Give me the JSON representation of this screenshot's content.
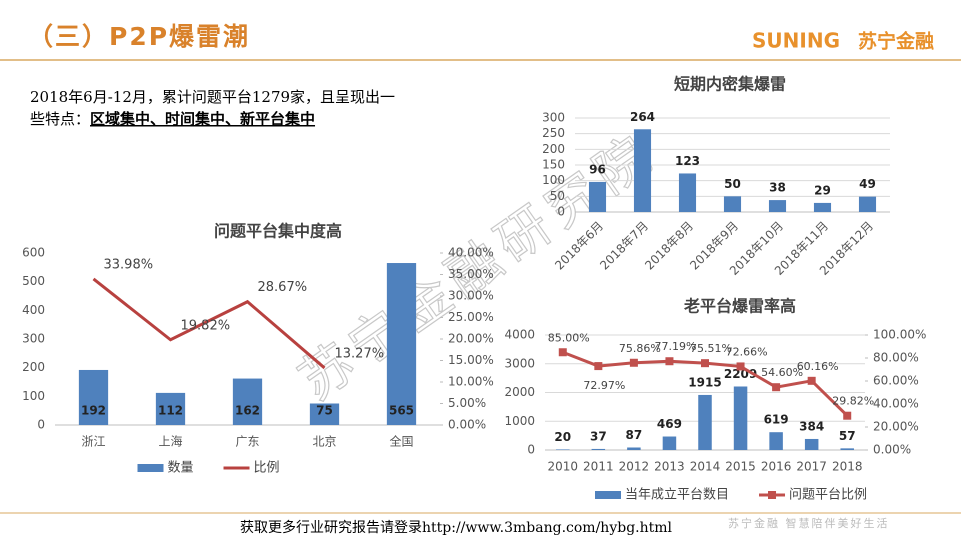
{
  "header": {
    "title": "（三）P2P爆雷潮",
    "logo_latin": "SUNING",
    "logo_cn": "苏宁金融"
  },
  "intro": {
    "line1": "2018年6月-12月，累计问题平台1279家，且呈现出一",
    "line2_prefix": "些特点：",
    "line2_emphasis": "区域集中、时间集中、新平台集中"
  },
  "watermark": "苏宁金融研究院",
  "footer": {
    "text": "获取更多行业研究报告请登录http://www.3mbang.com/hybg.html",
    "slogan": "苏宁金融 智慧陪伴美好生活"
  },
  "chart_data": [
    {
      "type": "combo",
      "title": "问题平台集中度高",
      "grid": false,
      "legend": "bottom",
      "categories": [
        "浙江",
        "上海",
        "广东",
        "北京",
        "全国"
      ],
      "series": [
        {
          "name": "数量",
          "type": "bar",
          "color": "#4f81bd",
          "values": [
            192,
            112,
            162,
            75,
            565
          ]
        },
        {
          "name": "比例",
          "type": "line",
          "axis": "y2",
          "color": "#b8413f",
          "values": [
            33.98,
            19.82,
            28.67,
            13.27,
            null
          ],
          "value_labels": [
            "33.98%",
            "19.82%",
            "28.67%",
            "13.27%",
            null
          ]
        }
      ],
      "ylim": [
        0,
        600
      ],
      "yticks": [
        0,
        100,
        200,
        300,
        400,
        500,
        600
      ],
      "y2lim": [
        0,
        40
      ],
      "y2ticks": [
        {
          "value": 0,
          "label": "0.00%"
        },
        {
          "value": 5,
          "label": "5.00%"
        },
        {
          "value": 10,
          "label": "10.00%"
        },
        {
          "value": 15,
          "label": "15.00%"
        },
        {
          "value": 20,
          "label": "20.00%"
        },
        {
          "value": 25,
          "label": "25.00%"
        },
        {
          "value": 30,
          "label": "30.00%"
        },
        {
          "value": 35,
          "label": "35.00%"
        },
        {
          "value": 40,
          "label": "40.00%"
        }
      ]
    },
    {
      "type": "bar",
      "title": "短期内密集爆雷",
      "grid": true,
      "categories": [
        "2018年6月",
        "2018年7月",
        "2018年8月",
        "2018年9月",
        "2018年10月",
        "2018年11月",
        "2018年12月"
      ],
      "series": [
        {
          "name": null,
          "type": "bar",
          "color": "#4f81bd",
          "values": [
            96,
            264,
            123,
            50,
            38,
            29,
            49
          ]
        }
      ],
      "ylim": [
        0,
        300
      ],
      "yticks": [
        0,
        50,
        100,
        150,
        200,
        250,
        300
      ]
    },
    {
      "type": "combo",
      "title": "老平台爆雷率高",
      "grid": true,
      "legend": "bottom",
      "categories": [
        "2010",
        "2011",
        "2012",
        "2013",
        "2014",
        "2015",
        "2016",
        "2017",
        "2018"
      ],
      "series": [
        {
          "name": "当年成立平台数目",
          "type": "bar",
          "color": "#4f81bd",
          "values": [
            20,
            37,
            87,
            469,
            1915,
            2209,
            619,
            384,
            57
          ]
        },
        {
          "name": "问题平台比例",
          "type": "line",
          "axis": "y2",
          "color": "#c0504d",
          "values": [
            85.0,
            72.97,
            75.86,
            77.19,
            75.51,
            72.66,
            54.6,
            60.16,
            29.82
          ],
          "value_labels": [
            "85.00%",
            "72.97%",
            "75.86%",
            "77.19%",
            "75.51%",
            "72.66%",
            "54.60%",
            "60.16%",
            "29.82%"
          ]
        }
      ],
      "ylim": [
        0,
        4000
      ],
      "yticks": [
        0,
        1000,
        2000,
        3000,
        4000
      ],
      "y2lim": [
        0,
        100
      ],
      "y2ticks": [
        {
          "value": 0,
          "label": "0.00%"
        },
        {
          "value": 20,
          "label": "20.00%"
        },
        {
          "value": 40,
          "label": "40.00%"
        },
        {
          "value": 60,
          "label": "60.00%"
        },
        {
          "value": 80,
          "label": "80.00%"
        },
        {
          "value": 100,
          "label": "100.00%"
        }
      ]
    }
  ]
}
